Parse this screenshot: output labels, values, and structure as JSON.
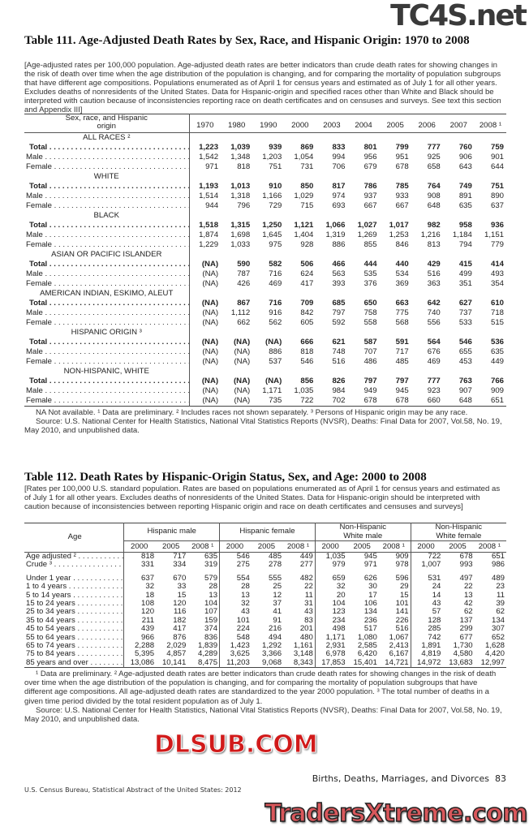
{
  "table111": {
    "title": "Table 111. Age-Adjusted Death Rates by Sex, Race, and Hispanic Origin: 1970 to 2008",
    "intro": "[Age-adjusted rates per 100,000 population. Age-adjusted death rates are better indicators than crude death rates for showing changes in the risk of death over time when the age distribution of the population is changing, and for comparing the mortality of population subgroups that have different age compositions. Populations enumerated as of April 1 for census years and estimated as of July 1 for all other years. Excludes deaths of nonresidents of the United States. Data for Hispanic-origin and specified races other than White and Black should be interpreted with caution because of inconsistencies  reporting race on death certificates and on censuses and surveys. See text this section and Appendix III]",
    "stub_header": "Sex, race, and Hispanic origin",
    "years": [
      "1970",
      "1980",
      "1990",
      "2000",
      "2003",
      "2004",
      "2005",
      "2006",
      "2007",
      "2008 ¹"
    ],
    "groups": [
      {
        "label": "ALL RACES ²",
        "rows": [
          {
            "label": "Total",
            "values": [
              "1,223",
              "1,039",
              "939",
              "869",
              "833",
              "801",
              "799",
              "777",
              "760",
              "759"
            ]
          },
          {
            "label": "Male",
            "values": [
              "1,542",
              "1,348",
              "1,203",
              "1,054",
              "994",
              "956",
              "951",
              "925",
              "906",
              "901"
            ]
          },
          {
            "label": "Female",
            "values": [
              "971",
              "818",
              "751",
              "731",
              "706",
              "679",
              "678",
              "658",
              "643",
              "644"
            ]
          }
        ]
      },
      {
        "label": "WHITE",
        "rows": [
          {
            "label": "Total",
            "values": [
              "1,193",
              "1,013",
              "910",
              "850",
              "817",
              "786",
              "785",
              "764",
              "749",
              "751"
            ]
          },
          {
            "label": "Male",
            "values": [
              "1,514",
              "1,318",
              "1,166",
              "1,029",
              "974",
              "937",
              "933",
              "908",
              "891",
              "890"
            ]
          },
          {
            "label": "Female",
            "values": [
              "944",
              "796",
              "729",
              "715",
              "693",
              "667",
              "667",
              "648",
              "635",
              "637"
            ]
          }
        ]
      },
      {
        "label": "BLACK",
        "rows": [
          {
            "label": "Total",
            "values": [
              "1,518",
              "1,315",
              "1,250",
              "1,121",
              "1,066",
              "1,027",
              "1,017",
              "982",
              "958",
              "936"
            ]
          },
          {
            "label": "Male",
            "values": [
              "1,874",
              "1,698",
              "1,645",
              "1,404",
              "1,319",
              "1,269",
              "1,253",
              "1,216",
              "1,184",
              "1,151"
            ]
          },
          {
            "label": "Female",
            "values": [
              "1,229",
              "1,033",
              "975",
              "928",
              "886",
              "855",
              "846",
              "813",
              "794",
              "779"
            ]
          }
        ]
      },
      {
        "label": "ASIAN OR PACIFIC ISLANDER",
        "rows": [
          {
            "label": "Total",
            "values": [
              "(NA)",
              "590",
              "582",
              "506",
              "466",
              "444",
              "440",
              "429",
              "415",
              "414"
            ]
          },
          {
            "label": "Male",
            "values": [
              "(NA)",
              "787",
              "716",
              "624",
              "563",
              "535",
              "534",
              "516",
              "499",
              "493"
            ]
          },
          {
            "label": "Female",
            "values": [
              "(NA)",
              "426",
              "469",
              "417",
              "393",
              "376",
              "369",
              "363",
              "351",
              "354"
            ]
          }
        ]
      },
      {
        "label": "AMERICAN INDIAN, ESKIMO, ALEUT",
        "rows": [
          {
            "label": "Total",
            "values": [
              "(NA)",
              "867",
              "716",
              "709",
              "685",
              "650",
              "663",
              "642",
              "627",
              "610"
            ]
          },
          {
            "label": "Male",
            "values": [
              "(NA)",
              "1,112",
              "916",
              "842",
              "797",
              "758",
              "775",
              "740",
              "737",
              "718"
            ]
          },
          {
            "label": "Female",
            "values": [
              "(NA)",
              "662",
              "562",
              "605",
              "592",
              "558",
              "568",
              "556",
              "533",
              "515"
            ]
          }
        ]
      },
      {
        "label": "HISPANIC ORIGIN ³",
        "rows": [
          {
            "label": "Total",
            "values": [
              "(NA)",
              "(NA)",
              "(NA)",
              "666",
              "621",
              "587",
              "591",
              "564",
              "546",
              "536"
            ]
          },
          {
            "label": "Male",
            "values": [
              "(NA)",
              "(NA)",
              "886",
              "818",
              "748",
              "707",
              "717",
              "676",
              "655",
              "635"
            ]
          },
          {
            "label": "Female",
            "values": [
              "(NA)",
              "(NA)",
              "537",
              "546",
              "516",
              "486",
              "485",
              "469",
              "453",
              "449"
            ]
          }
        ]
      },
      {
        "label": "NON-HISPANIC, WHITE",
        "rows": [
          {
            "label": "Total",
            "values": [
              "(NA)",
              "(NA)",
              "(NA)",
              "856",
              "826",
              "797",
              "797",
              "777",
              "763",
              "766"
            ]
          },
          {
            "label": "Male",
            "values": [
              "(NA)",
              "(NA)",
              "1,171",
              "1,035",
              "984",
              "949",
              "945",
              "923",
              "907",
              "909"
            ]
          },
          {
            "label": "Female",
            "values": [
              "(NA)",
              "(NA)",
              "735",
              "722",
              "702",
              "678",
              "678",
              "660",
              "648",
              "651"
            ]
          }
        ]
      }
    ],
    "footnote": "NA Not available. ¹ Data are preliminary. ² Includes races not shown separately. ³ Persons of Hispanic origin may be any race.",
    "source": "Source: U.S. National Center for Health Statistics, National Vital Statistics Reports (NVSR), Deaths: Final Data for 2007, Vol.58, No. 19, May 2010, and unpublished data."
  },
  "table112": {
    "title": "Table 112. Death Rates by Hispanic-Origin Status, Sex, and Age: 2000 to 2008",
    "intro": "[Rates per 100,000 U.S. standard population. Rates are based on populations enumerated as of April 1 for census years and estimated as of July 1 for all other years. Excludes deaths of nonresidents of the United States. Data for Hispanic-origin should be interpreted with caution because of inconsistencies between reporting Hispanic origin and race on death certificates and censuses and surveys]",
    "stub_header": "Age",
    "groups": [
      "Hispanic male",
      "Hispanic female",
      "Non-Hispanic White male",
      "Non-Hispanic White female"
    ],
    "years": [
      "2000",
      "2005",
      "2008 ¹"
    ],
    "rows": [
      {
        "label": "Age adjusted ²",
        "values": [
          "818",
          "717",
          "635",
          "546",
          "485",
          "449",
          "1,035",
          "945",
          "909",
          "722",
          "678",
          "651"
        ]
      },
      {
        "label": "Crude ³",
        "values": [
          "331",
          "334",
          "319",
          "275",
          "278",
          "277",
          "979",
          "971",
          "978",
          "1,007",
          "993",
          "986"
        ]
      },
      {
        "label": "Under 1 year",
        "values": [
          "637",
          "670",
          "579",
          "554",
          "555",
          "482",
          "659",
          "626",
          "596",
          "531",
          "497",
          "489"
        ]
      },
      {
        "label": "1 to 4 years",
        "values": [
          "32",
          "33",
          "28",
          "28",
          "25",
          "22",
          "32",
          "30",
          "29",
          "24",
          "22",
          "23"
        ]
      },
      {
        "label": "5 to 14 years",
        "values": [
          "18",
          "15",
          "13",
          "13",
          "12",
          "11",
          "20",
          "17",
          "15",
          "14",
          "13",
          "11"
        ]
      },
      {
        "label": "15 to 24 years",
        "values": [
          "108",
          "120",
          "104",
          "32",
          "37",
          "31",
          "104",
          "106",
          "101",
          "43",
          "42",
          "39"
        ]
      },
      {
        "label": "25 to 34 years",
        "values": [
          "120",
          "116",
          "107",
          "43",
          "41",
          "43",
          "123",
          "134",
          "141",
          "57",
          "62",
          "62"
        ]
      },
      {
        "label": "35 to 44 years",
        "values": [
          "211",
          "182",
          "159",
          "101",
          "91",
          "83",
          "234",
          "236",
          "226",
          "128",
          "137",
          "134"
        ]
      },
      {
        "label": "45 to 54 years",
        "values": [
          "439",
          "417",
          "374",
          "224",
          "216",
          "201",
          "498",
          "517",
          "516",
          "285",
          "299",
          "307"
        ]
      },
      {
        "label": "55 to 64 years",
        "values": [
          "966",
          "876",
          "836",
          "548",
          "494",
          "480",
          "1,171",
          "1,080",
          "1,067",
          "742",
          "677",
          "652"
        ]
      },
      {
        "label": "65 to 74 years",
        "values": [
          "2,288",
          "2,029",
          "1,839",
          "1,423",
          "1,292",
          "1,161",
          "2,931",
          "2,585",
          "2,413",
          "1,891",
          "1,730",
          "1,628"
        ]
      },
      {
        "label": "75 to 84 years",
        "values": [
          "5,395",
          "4,857",
          "4,289",
          "3,625",
          "3,366",
          "3,148",
          "6,978",
          "6,420",
          "6,167",
          "4,819",
          "4,580",
          "4,420"
        ]
      },
      {
        "label": "85 years and over",
        "values": [
          "13,086",
          "10,141",
          "8,475",
          "11,203",
          "9,068",
          "8,343",
          "17,853",
          "15,401",
          "14,721",
          "14,972",
          "13,683",
          "12,997"
        ]
      }
    ],
    "footnote": "¹ Data are preliminary. ² Age-adjusted death rates are better indicators than crude death rates for showing changes in the risk of death over time when the age distribution of the population is changing, and for comparing the mortality of population subgroups that have different age compositions. All age-adjusted death rates are standardized to the year 2000 population. ³ The total number of deaths in a given time period divided by the total resident population as of July 1.",
    "source": "Source: U.S. National Center for Health Statistics, National Vital Statistics Reports (NVSR), Deaths: Final Data for 2007, Vol.58, No. 19, May 2010, and unpublished data."
  },
  "footer": {
    "section": "Births, Deaths, Marriages, and Divorces",
    "page": "83",
    "publisher": "U.S. Census Bureau, Statistical Abstract of the United States: 2012"
  },
  "watermarks": {
    "top": "TC4S.net",
    "middle": "DLSUB.COM",
    "bottom": "TradersXtreme.com"
  }
}
